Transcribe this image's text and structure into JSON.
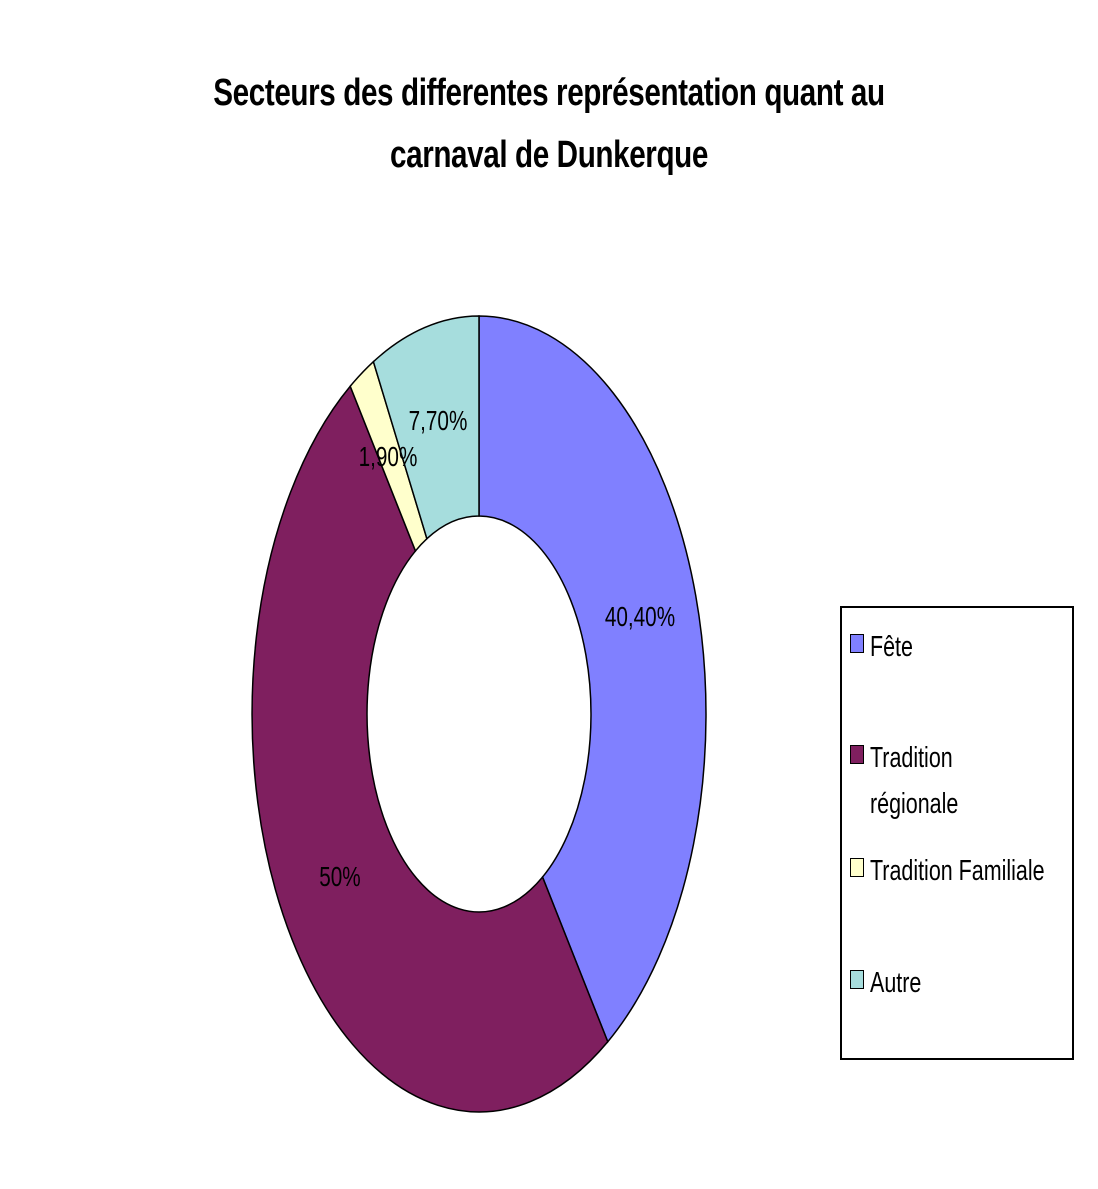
{
  "chart_data": {
    "type": "pie",
    "variant": "donut",
    "title_lines": [
      "Secteurs des differentes représentation quant au",
      "carnaval de Dunkerque"
    ],
    "categories": [
      "Fête",
      "Tradition régionale",
      "Tradition Familiale",
      "Autre"
    ],
    "values": [
      40.4,
      50.0,
      1.9,
      7.7
    ],
    "data_labels": [
      "40,40%",
      "50%",
      "1,90%",
      "7,70%"
    ],
    "colors": [
      "#8080FF",
      "#7F1F5F",
      "#FFFFCC",
      "#A6DDDD"
    ],
    "legend": {
      "position": "right",
      "items": [
        {
          "lines": [
            "Fête"
          ],
          "color": "#8080FF"
        },
        {
          "lines": [
            "Tradition",
            "régionale"
          ],
          "color": "#7F1F5F"
        },
        {
          "lines": [
            "Tradition Familiale"
          ],
          "color": "#FFFFCC"
        },
        {
          "lines": [
            "Autre"
          ],
          "color": "#A6DDDD"
        }
      ]
    }
  }
}
